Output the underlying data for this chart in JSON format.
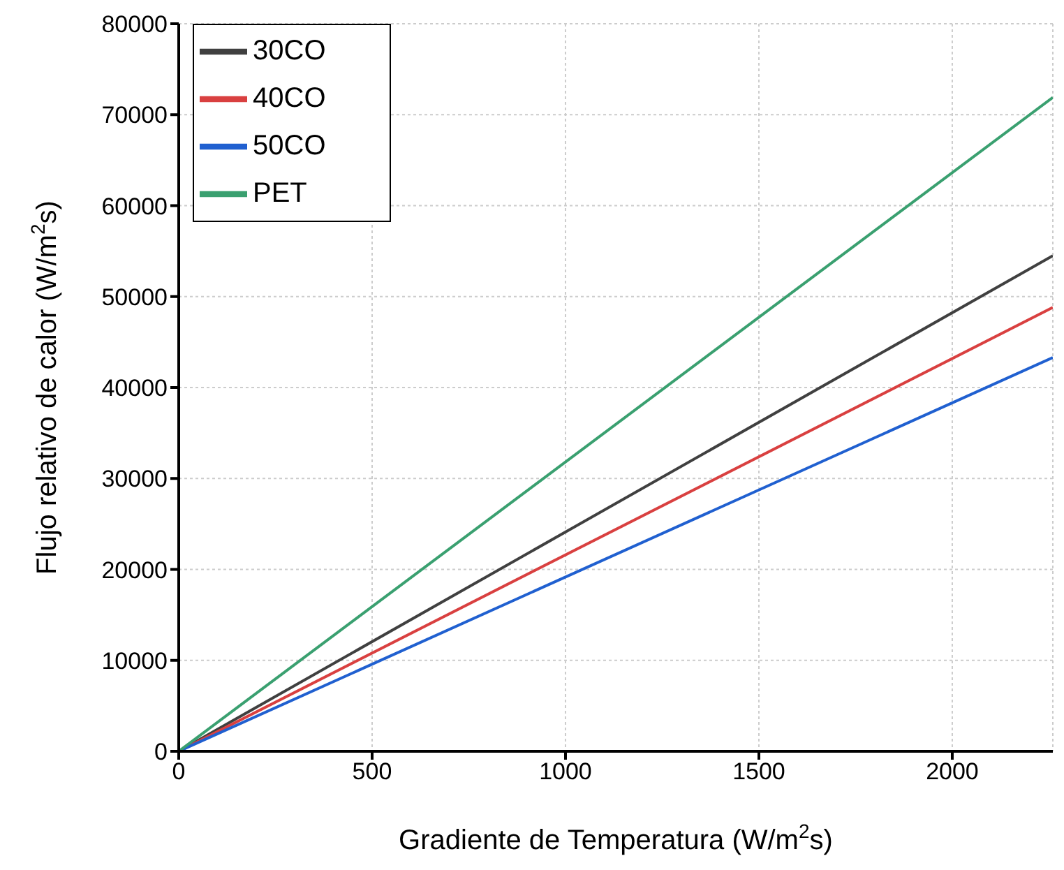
{
  "chart_data": {
    "type": "line",
    "xlabel": "Gradiente de Temperatura (W/m$^{2}$s)",
    "ylabel": "Flujo relativo de calor (W/m$^{2}$s)",
    "x": [
      0,
      2260
    ],
    "series": [
      {
        "name": "30CO",
        "color": "#404040",
        "values": [
          0,
          54500
        ]
      },
      {
        "name": "40CO",
        "color": "#d94040",
        "values": [
          0,
          48800
        ]
      },
      {
        "name": "50CO",
        "color": "#2060d0",
        "values": [
          0,
          43300
        ]
      },
      {
        "name": "PET",
        "color": "#3aa070",
        "values": [
          0,
          71900
        ]
      }
    ],
    "xlim": [
      0,
      2260
    ],
    "xticks": [
      0,
      500,
      1000,
      1500,
      2000
    ],
    "ylim": [
      0,
      80000
    ],
    "yticks": [
      0,
      10000,
      20000,
      30000,
      40000,
      50000,
      60000,
      70000,
      80000
    ],
    "grid": true,
    "legend": "top left",
    "marker": "none",
    "line_style": "solid"
  }
}
